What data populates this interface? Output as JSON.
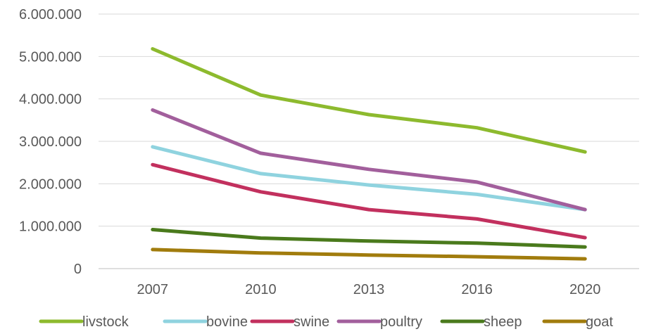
{
  "chart_data": {
    "type": "line",
    "x": [
      "2007",
      "2010",
      "2013",
      "2016",
      "2020"
    ],
    "ylim": [
      0,
      6000000
    ],
    "yticks": [
      0,
      1000000,
      2000000,
      3000000,
      4000000,
      5000000,
      6000000
    ],
    "ytick_labels": [
      "0",
      "1.000.000",
      "2.000.000",
      "3.000.000",
      "4.000.000",
      "5.000.000",
      "6.000.000"
    ],
    "grid": true,
    "legend": "bottom",
    "series": [
      {
        "name": "livstock",
        "color": "#8dba2e",
        "values": [
          5180000,
          4090000,
          3630000,
          3320000,
          2750000
        ]
      },
      {
        "name": "bovine",
        "color": "#8fd3df",
        "values": [
          2870000,
          2240000,
          1970000,
          1750000,
          1390000
        ]
      },
      {
        "name": "swine",
        "color": "#c2305e",
        "values": [
          2450000,
          1810000,
          1390000,
          1170000,
          730000
        ]
      },
      {
        "name": "poultry",
        "color": "#a25f9c",
        "values": [
          3740000,
          2720000,
          2340000,
          2040000,
          1390000
        ]
      },
      {
        "name": "sheep",
        "color": "#4a7a1c",
        "values": [
          920000,
          720000,
          650000,
          600000,
          510000
        ]
      },
      {
        "name": "goat",
        "color": "#a17c0d",
        "values": [
          450000,
          370000,
          320000,
          280000,
          230000
        ]
      }
    ]
  }
}
